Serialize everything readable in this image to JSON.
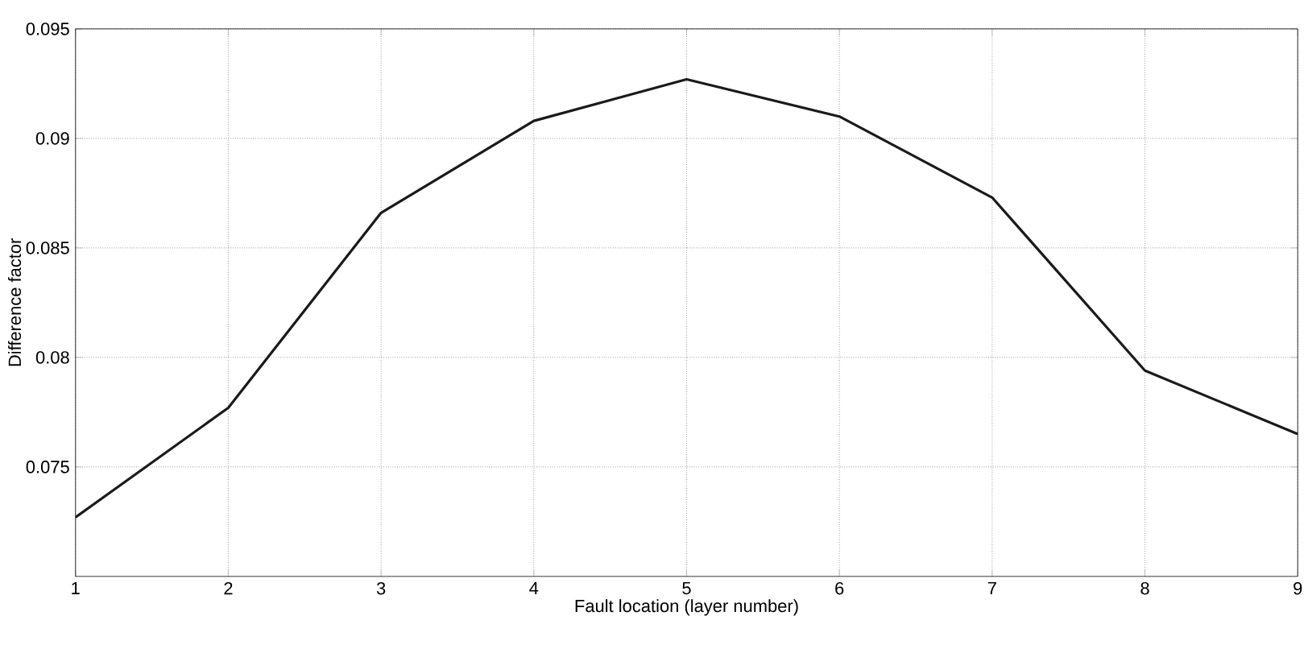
{
  "chart_data": {
    "type": "line",
    "xlabel": "Fault location (layer number)",
    "ylabel": "Difference factor",
    "x": [
      1,
      2,
      3,
      4,
      5,
      6,
      7,
      8,
      9
    ],
    "series": [
      {
        "color": "#1a1a1a",
        "values": [
          0.0727,
          0.0777,
          0.0866,
          0.0908,
          0.0927,
          0.091,
          0.0873,
          0.0794,
          0.0765
        ]
      }
    ],
    "xlim": [
      1,
      9
    ],
    "xticks": [
      1,
      2,
      3,
      4,
      5,
      6,
      7,
      8,
      9
    ],
    "ylim": [
      0.07,
      0.095
    ],
    "yticks": [
      0.075,
      0.08,
      0.085,
      0.09,
      0.095
    ],
    "grid": true,
    "line_style": "solid",
    "marker": "none"
  }
}
